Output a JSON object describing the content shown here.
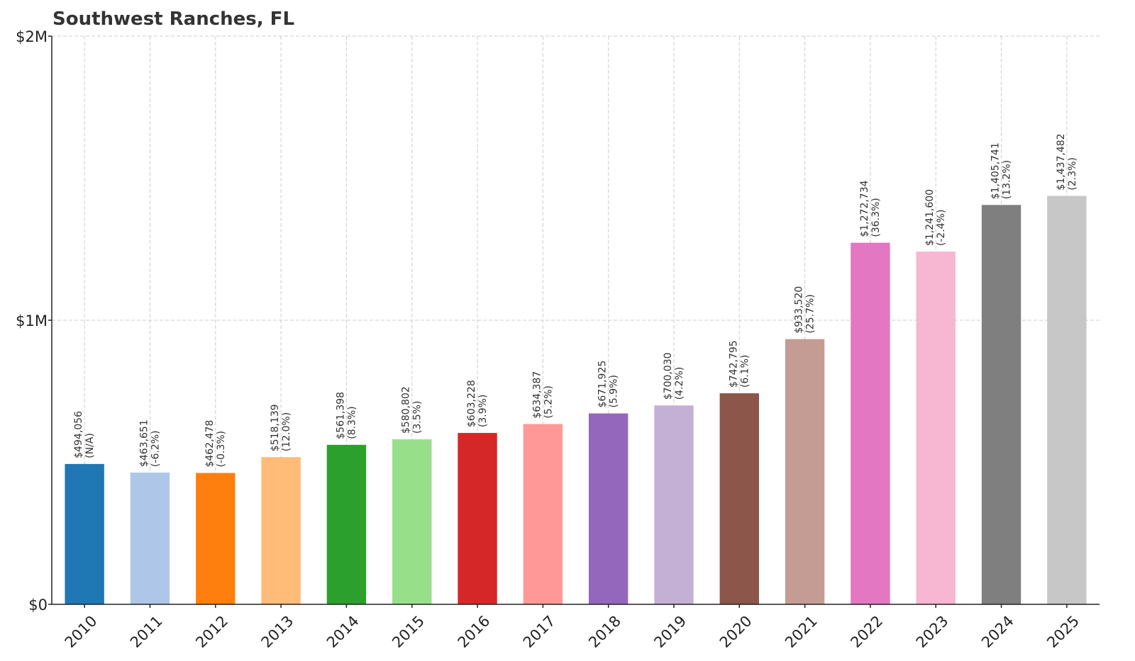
{
  "chart_data": {
    "type": "bar",
    "title": "Southwest Ranches, FL",
    "xlabel": "",
    "ylabel": "",
    "ylim": [
      0,
      2000000
    ],
    "y_ticks": [
      {
        "value": 0,
        "label": "$0"
      },
      {
        "value": 1000000,
        "label": "$1M"
      },
      {
        "value": 2000000,
        "label": "$2M"
      }
    ],
    "grid": true,
    "categories": [
      "2010",
      "2011",
      "2012",
      "2013",
      "2014",
      "2015",
      "2016",
      "2017",
      "2018",
      "2019",
      "2020",
      "2021",
      "2022",
      "2023",
      "2024",
      "2025"
    ],
    "values": [
      494056,
      463651,
      462478,
      518139,
      561398,
      580802,
      603228,
      634387,
      671925,
      700030,
      742795,
      933520,
      1272734,
      1241600,
      1405741,
      1437482
    ],
    "value_labels": [
      "$494,056",
      "$463,651",
      "$462,478",
      "$518,139",
      "$561,398",
      "$580,802",
      "$603,228",
      "$634,387",
      "$671,925",
      "$700,030",
      "$742,795",
      "$933,520",
      "$1,272,734",
      "$1,241,600",
      "$1,405,741",
      "$1,437,482"
    ],
    "change_labels": [
      "(N/A)",
      "(-6.2%)",
      "(-0.3%)",
      "(12.0%)",
      "(8.3%)",
      "(3.5%)",
      "(3.9%)",
      "(5.2%)",
      "(5.9%)",
      "(4.2%)",
      "(6.1%)",
      "(25.7%)",
      "(36.3%)",
      "(-2.4%)",
      "(13.2%)",
      "(2.3%)"
    ],
    "colors": [
      "#1f77b4",
      "#aec7e8",
      "#ff7f0e",
      "#ffbb78",
      "#2ca02c",
      "#98df8a",
      "#d62728",
      "#ff9896",
      "#9467bd",
      "#c5b0d5",
      "#8c564b",
      "#c49c94",
      "#e377c2",
      "#f7b6d2",
      "#7f7f7f",
      "#c7c7c7"
    ]
  }
}
